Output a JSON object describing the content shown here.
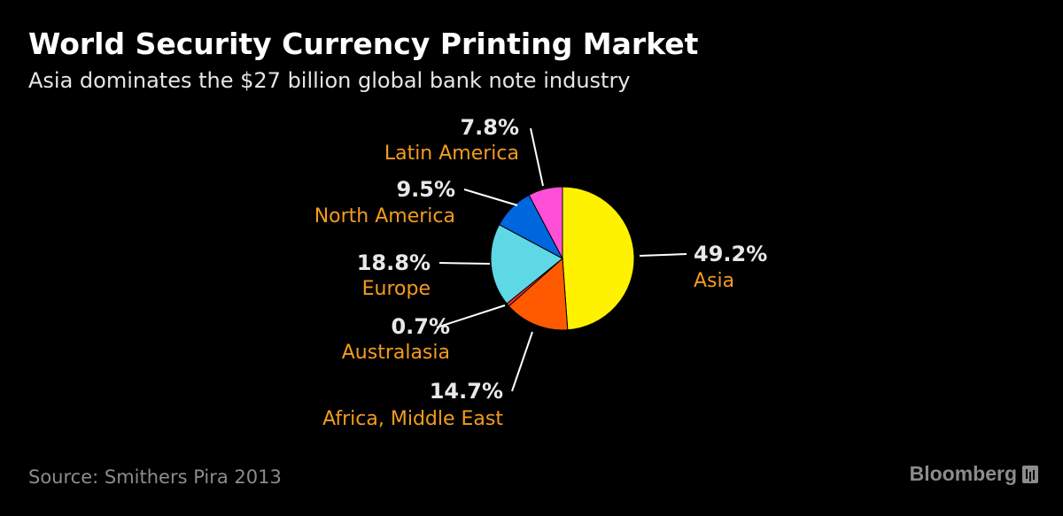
{
  "title": "World Security Currency Printing Market",
  "subtitle": "Asia dominates the $27 billion global bank note industry",
  "source": "Source: Smithers Pira 2013",
  "brand": "Bloomberg",
  "colors": {
    "background": "#000000",
    "label_name": "#f39c1f",
    "leader_line": "#ffffff"
  },
  "chart_data": {
    "type": "pie",
    "start_angle_deg": 0,
    "direction": "clockwise",
    "slices": [
      {
        "label": "Asia",
        "value": 49.2,
        "value_label": "49.2%",
        "color": "#fff200"
      },
      {
        "label": "Africa, Middle East",
        "value": 14.7,
        "value_label": "14.7%",
        "color": "#ff5a00"
      },
      {
        "label": "Australasia",
        "value": 0.7,
        "value_label": "0.7%",
        "color": "#ff2e2e"
      },
      {
        "label": "Europe",
        "value": 18.8,
        "value_label": "18.8%",
        "color": "#5fd8e6"
      },
      {
        "label": "North America",
        "value": 9.5,
        "value_label": "9.5%",
        "color": "#0066dd"
      },
      {
        "label": "Latin America",
        "value": 7.8,
        "value_label": "7.8%",
        "color": "#ff4fd8"
      }
    ]
  }
}
